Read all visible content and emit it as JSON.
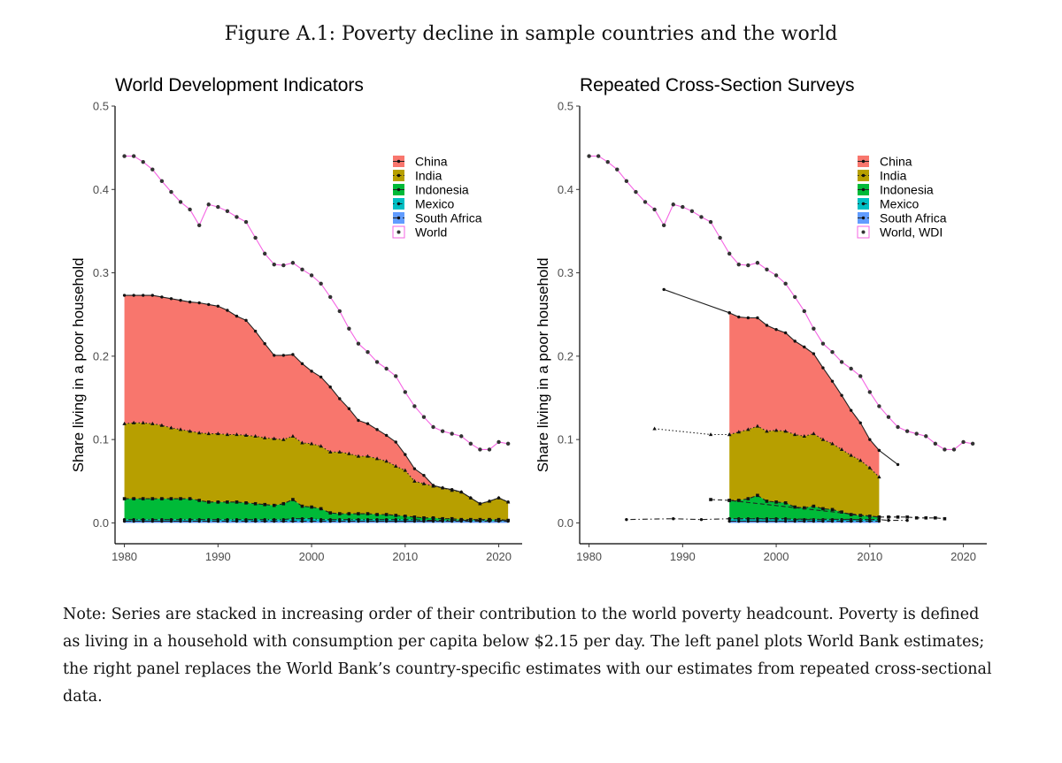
{
  "figure": {
    "title": "Figure A.1: Poverty decline in sample countries and the world",
    "note": "Note: Series are stacked in increasing order of their contribution to the world poverty headcount. Poverty is defined as living in a household with consumption per capita below $2.15 per day. The left panel plots World Bank estimates; the right panel replaces the World Bank’s country-specific estimates with our estimates from repeated cross-sectional data."
  },
  "colors": {
    "China": "#F8766D",
    "India": "#B79F00",
    "Indonesia": "#00BA38",
    "Mexico": "#00BFC4",
    "South Africa": "#619CFF",
    "World": "#F564E3"
  },
  "chart_data": [
    {
      "type": "area",
      "stacked": true,
      "title": "World Development Indicators",
      "xlabel": "",
      "ylabel": "Share living in a poor household",
      "xlim": [
        1979,
        2022.5
      ],
      "ylim": [
        -0.025,
        0.5
      ],
      "xticks": [
        1980,
        1990,
        2000,
        2010,
        2020
      ],
      "yticks": [
        0.0,
        0.1,
        0.2,
        0.3,
        0.4,
        0.5
      ],
      "ytick_labels": [
        "0.0",
        "0.1",
        "0.2",
        "0.3",
        "0.4",
        "0.5"
      ],
      "grid": false,
      "legend": {
        "placement": "top-right",
        "entries": [
          "China",
          "India",
          "Indonesia",
          "Mexico",
          "South Africa",
          "World"
        ]
      },
      "x": [
        1980,
        1981,
        1982,
        1983,
        1984,
        1985,
        1986,
        1987,
        1988,
        1989,
        1990,
        1991,
        1992,
        1993,
        1994,
        1995,
        1996,
        1997,
        1998,
        1999,
        2000,
        2001,
        2002,
        2003,
        2004,
        2005,
        2006,
        2007,
        2008,
        2009,
        2010,
        2011,
        2012,
        2013,
        2014,
        2015,
        2016,
        2017,
        2018,
        2019,
        2020,
        2021
      ],
      "cumulative_series": [
        {
          "name": "China",
          "values": [
            0.273,
            0.273,
            0.273,
            0.273,
            0.271,
            0.269,
            0.267,
            0.265,
            0.264,
            0.262,
            0.26,
            0.255,
            0.248,
            0.243,
            0.23,
            0.215,
            0.201,
            0.201,
            0.202,
            0.191,
            0.182,
            0.175,
            0.163,
            0.149,
            0.137,
            0.123,
            0.119,
            0.112,
            0.105,
            0.097,
            0.082,
            0.065,
            0.057,
            0.045,
            0.042,
            0.04,
            0.037,
            0.03,
            0.023,
            0.026,
            0.03,
            0.025
          ]
        },
        {
          "name": "India",
          "values": [
            0.119,
            0.12,
            0.12,
            0.119,
            0.117,
            0.114,
            0.112,
            0.11,
            0.108,
            0.107,
            0.107,
            0.106,
            0.106,
            0.105,
            0.104,
            0.102,
            0.101,
            0.1,
            0.104,
            0.096,
            0.095,
            0.092,
            0.085,
            0.085,
            0.083,
            0.08,
            0.08,
            0.077,
            0.074,
            0.068,
            0.063,
            0.05,
            0.047,
            0.044,
            0.042,
            0.039,
            0.037,
            0.03,
            0.023,
            0.026,
            0.03,
            0.025
          ]
        },
        {
          "name": "Indonesia",
          "values": [
            0.029,
            0.029,
            0.029,
            0.029,
            0.029,
            0.029,
            0.029,
            0.029,
            0.027,
            0.025,
            0.025,
            0.025,
            0.025,
            0.024,
            0.023,
            0.022,
            0.021,
            0.023,
            0.028,
            0.02,
            0.019,
            0.017,
            0.012,
            0.011,
            0.011,
            0.011,
            0.011,
            0.01,
            0.01,
            0.009,
            0.008,
            0.007,
            0.006,
            0.006,
            0.005,
            0.005,
            0.004,
            0.004,
            0.004,
            0.004,
            0.004,
            0.003
          ]
        },
        {
          "name": "Mexico",
          "values": [
            0.004,
            0.004,
            0.004,
            0.004,
            0.004,
            0.004,
            0.004,
            0.004,
            0.004,
            0.004,
            0.004,
            0.004,
            0.004,
            0.004,
            0.004,
            0.004,
            0.004,
            0.004,
            0.005,
            0.005,
            0.005,
            0.004,
            0.004,
            0.004,
            0.004,
            0.004,
            0.004,
            0.004,
            0.004,
            0.004,
            0.004,
            0.004,
            0.003,
            0.003,
            0.003,
            0.003,
            0.003,
            0.003,
            0.003,
            0.003,
            0.003,
            0.003
          ]
        },
        {
          "name": "South Africa",
          "values": [
            0.002,
            0.002,
            0.002,
            0.002,
            0.002,
            0.002,
            0.002,
            0.002,
            0.002,
            0.002,
            0.002,
            0.002,
            0.002,
            0.002,
            0.002,
            0.002,
            0.002,
            0.002,
            0.002,
            0.002,
            0.002,
            0.002,
            0.002,
            0.002,
            0.002,
            0.002,
            0.002,
            0.002,
            0.002,
            0.002,
            0.002,
            0.002,
            0.002,
            0.002,
            0.002,
            0.002,
            0.002,
            0.002,
            0.002,
            0.002,
            0.002,
            0.002
          ]
        }
      ],
      "world": {
        "name": "World",
        "values": [
          0.44,
          0.44,
          0.433,
          0.424,
          0.41,
          0.397,
          0.385,
          0.376,
          0.357,
          0.382,
          0.379,
          0.374,
          0.367,
          0.361,
          0.342,
          0.323,
          0.31,
          0.309,
          0.312,
          0.304,
          0.297,
          0.287,
          0.271,
          0.254,
          0.233,
          0.215,
          0.205,
          0.193,
          0.185,
          0.176,
          0.157,
          0.14,
          0.127,
          0.115,
          0.11,
          0.107,
          0.104,
          0.095,
          0.088,
          0.088,
          0.097,
          0.095
        ]
      }
    },
    {
      "type": "area",
      "stacked": true,
      "title": "Repeated Cross-Section Surveys",
      "xlabel": "",
      "ylabel": "Share living in a poor household",
      "xlim": [
        1979,
        2022.5
      ],
      "ylim": [
        -0.025,
        0.5
      ],
      "xticks": [
        1980,
        1990,
        2000,
        2010,
        2020
      ],
      "yticks": [
        0.0,
        0.1,
        0.2,
        0.3,
        0.4,
        0.5
      ],
      "ytick_labels": [
        "0.0",
        "0.1",
        "0.2",
        "0.3",
        "0.4",
        "0.5"
      ],
      "grid": false,
      "legend": {
        "placement": "top-right",
        "entries": [
          "China",
          "India",
          "Indonesia",
          "Mexico",
          "South Africa",
          "World, WDI"
        ]
      },
      "x": [
        1995,
        1996,
        1997,
        1998,
        1999,
        2000,
        2001,
        2002,
        2003,
        2004,
        2005,
        2006,
        2007,
        2008,
        2009,
        2010,
        2011
      ],
      "cumulative_series": [
        {
          "name": "China",
          "values": [
            0.252,
            0.247,
            0.246,
            0.246,
            0.237,
            0.232,
            0.228,
            0.218,
            0.211,
            0.203,
            0.186,
            0.17,
            0.153,
            0.135,
            0.12,
            0.1,
            0.087
          ]
        },
        {
          "name": "India",
          "values": [
            0.106,
            0.109,
            0.112,
            0.116,
            0.11,
            0.111,
            0.11,
            0.106,
            0.104,
            0.107,
            0.1,
            0.095,
            0.088,
            0.081,
            0.075,
            0.066,
            0.055
          ]
        },
        {
          "name": "Indonesia",
          "values": [
            0.027,
            0.027,
            0.029,
            0.033,
            0.026,
            0.025,
            0.024,
            0.019,
            0.018,
            0.02,
            0.017,
            0.016,
            0.013,
            0.01,
            0.009,
            0.008,
            0.007
          ]
        },
        {
          "name": "Mexico",
          "values": [
            0.005,
            0.005,
            0.005,
            0.005,
            0.005,
            0.005,
            0.005,
            0.004,
            0.004,
            0.004,
            0.004,
            0.004,
            0.004,
            0.004,
            0.004,
            0.004,
            0.004
          ]
        },
        {
          "name": "South Africa",
          "values": [
            0.002,
            0.002,
            0.002,
            0.002,
            0.002,
            0.002,
            0.002,
            0.002,
            0.002,
            0.002,
            0.002,
            0.002,
            0.002,
            0.002,
            0.002,
            0.002,
            0.002
          ]
        }
      ],
      "extra_lines": [
        {
          "name": "China",
          "style": "solid",
          "x": [
            1988,
            1995
          ],
          "values": [
            0.28,
            0.252
          ]
        },
        {
          "name": "China",
          "style": "solid",
          "x": [
            2011,
            2013
          ],
          "values": [
            0.087,
            0.07
          ]
        },
        {
          "name": "India",
          "style": "dotted",
          "x": [
            1987,
            1993,
            1995
          ],
          "values": [
            0.113,
            0.106,
            0.106
          ]
        },
        {
          "name": "Indonesia",
          "style": "dashed",
          "x": [
            1993,
            1995,
            2011,
            2012,
            2013,
            2014,
            2015,
            2016,
            2017,
            2018
          ],
          "values": [
            0.028,
            0.027,
            0.007,
            0.007,
            0.007,
            0.007,
            0.006,
            0.006,
            0.006,
            0.005
          ]
        },
        {
          "name": "Mexico",
          "style": "dotdash",
          "x": [
            1984,
            1989,
            1992,
            1995,
            2011,
            2012,
            2014
          ],
          "values": [
            0.004,
            0.005,
            0.004,
            0.005,
            0.004,
            0.003,
            0.003
          ]
        }
      ],
      "world": {
        "name": "World, WDI",
        "x": [
          1980,
          1981,
          1982,
          1983,
          1984,
          1985,
          1986,
          1987,
          1988,
          1989,
          1990,
          1991,
          1992,
          1993,
          1994,
          1995,
          1996,
          1997,
          1998,
          1999,
          2000,
          2001,
          2002,
          2003,
          2004,
          2005,
          2006,
          2007,
          2008,
          2009,
          2010,
          2011,
          2012,
          2013,
          2014,
          2015,
          2016,
          2017,
          2018,
          2019,
          2020,
          2021
        ],
        "values": [
          0.44,
          0.44,
          0.433,
          0.424,
          0.41,
          0.397,
          0.385,
          0.376,
          0.357,
          0.382,
          0.379,
          0.374,
          0.367,
          0.361,
          0.342,
          0.323,
          0.31,
          0.309,
          0.312,
          0.304,
          0.297,
          0.287,
          0.271,
          0.254,
          0.233,
          0.215,
          0.205,
          0.193,
          0.185,
          0.176,
          0.157,
          0.14,
          0.127,
          0.115,
          0.11,
          0.107,
          0.104,
          0.095,
          0.088,
          0.088,
          0.097,
          0.095
        ]
      }
    }
  ]
}
